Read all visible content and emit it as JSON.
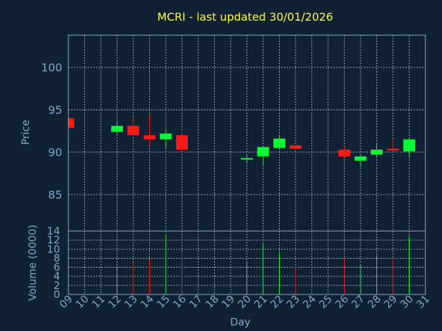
{
  "title": "MCRI - last updated 30/01/2026",
  "colors": {
    "background": "#0f2133",
    "up": "#00ff33",
    "down": "#ff1a1a",
    "title": "#ffff33",
    "axis_text": "#7fa8c8"
  },
  "chart_data": [
    {
      "type": "candlestick",
      "ylabel": "Price",
      "ylim": [
        80.7,
        103.8
      ],
      "yticks": [
        85,
        90,
        95,
        100
      ],
      "grid": true,
      "x_day_labels": [
        "09",
        "10",
        "11",
        "12",
        "13",
        "14",
        "15",
        "16",
        "17",
        "18",
        "19",
        "20",
        "21",
        "22",
        "23",
        "24",
        "25",
        "26",
        "27",
        "28",
        "29",
        "30",
        "31"
      ],
      "candles": [
        {
          "day": "09",
          "open": 94.0,
          "close": 92.9,
          "high": 94.0,
          "low": 92.9
        },
        {
          "day": "12",
          "open": 92.4,
          "close": 93.1,
          "high": 93.6,
          "low": 92.0
        },
        {
          "day": "13",
          "open": 93.1,
          "close": 92.0,
          "high": 94.2,
          "low": 91.9
        },
        {
          "day": "14",
          "open": 92.0,
          "close": 91.5,
          "high": 94.3,
          "low": 90.8
        },
        {
          "day": "15",
          "open": 91.5,
          "close": 92.2,
          "high": 92.8,
          "low": 90.5
        },
        {
          "day": "16",
          "open": 92.0,
          "close": 90.3,
          "high": 92.4,
          "low": 90.3
        },
        {
          "day": "20",
          "open": 89.2,
          "close": 89.3,
          "high": 89.6,
          "low": 88.7
        },
        {
          "day": "21",
          "open": 89.5,
          "close": 90.6,
          "high": 90.7,
          "low": 88.5
        },
        {
          "day": "22",
          "open": 90.5,
          "close": 91.6,
          "high": 91.9,
          "low": 90.4
        },
        {
          "day": "23",
          "open": 90.8,
          "close": 90.4,
          "high": 90.8,
          "low": 90.2
        },
        {
          "day": "26",
          "open": 90.3,
          "close": 89.5,
          "high": 90.7,
          "low": 89.5
        },
        {
          "day": "27",
          "open": 89.0,
          "close": 89.5,
          "high": 89.7,
          "low": 88.3
        },
        {
          "day": "28",
          "open": 89.7,
          "close": 90.3,
          "high": 91.0,
          "low": 89.4
        },
        {
          "day": "29",
          "open": 90.4,
          "close": 90.2,
          "high": 91.6,
          "low": 90.0
        },
        {
          "day": "30",
          "open": 90.1,
          "close": 91.5,
          "high": 91.7,
          "low": 89.5
        }
      ]
    },
    {
      "type": "bar",
      "ylabel": "Volume (0000)",
      "xlabel": "Day",
      "ylim": [
        0,
        14
      ],
      "yticks": [
        0,
        2,
        4,
        6,
        8,
        10,
        12,
        14
      ],
      "grid": true,
      "x_day_labels": [
        "09",
        "10",
        "11",
        "12",
        "13",
        "14",
        "15",
        "16",
        "17",
        "18",
        "19",
        "20",
        "21",
        "22",
        "23",
        "24",
        "25",
        "26",
        "27",
        "28",
        "29",
        "30",
        "31"
      ],
      "bars": [
        {
          "day": "12",
          "value": 6.0,
          "direction": "up"
        },
        {
          "day": "13",
          "value": 7.0,
          "direction": "down"
        },
        {
          "day": "14",
          "value": 7.6,
          "direction": "down"
        },
        {
          "day": "15",
          "value": 13.4,
          "direction": "up"
        },
        {
          "day": "16",
          "value": 9.2,
          "direction": "down"
        },
        {
          "day": "20",
          "value": 7.4,
          "direction": "up"
        },
        {
          "day": "21",
          "value": 11.2,
          "direction": "up"
        },
        {
          "day": "22",
          "value": 9.3,
          "direction": "up"
        },
        {
          "day": "23",
          "value": 6.1,
          "direction": "down"
        },
        {
          "day": "26",
          "value": 8.0,
          "direction": "down"
        },
        {
          "day": "27",
          "value": 6.7,
          "direction": "up"
        },
        {
          "day": "28",
          "value": 8.7,
          "direction": "up"
        },
        {
          "day": "29",
          "value": 8.0,
          "direction": "down"
        },
        {
          "day": "30",
          "value": 12.9,
          "direction": "up"
        }
      ]
    }
  ]
}
